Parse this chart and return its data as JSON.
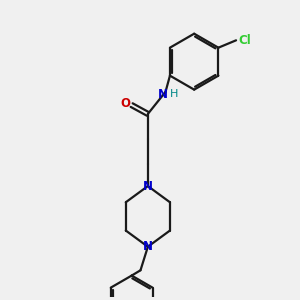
{
  "background_color": "#f0f0f0",
  "bond_color": "#1a1a1a",
  "nitrogen_color": "#0000cc",
  "oxygen_color": "#cc0000",
  "chlorine_color": "#33cc33",
  "hydrogen_color": "#008888",
  "line_width": 1.6,
  "figsize": [
    3.0,
    3.0
  ],
  "dpi": 100,
  "xlim": [
    0,
    10
  ],
  "ylim": [
    0,
    10
  ]
}
